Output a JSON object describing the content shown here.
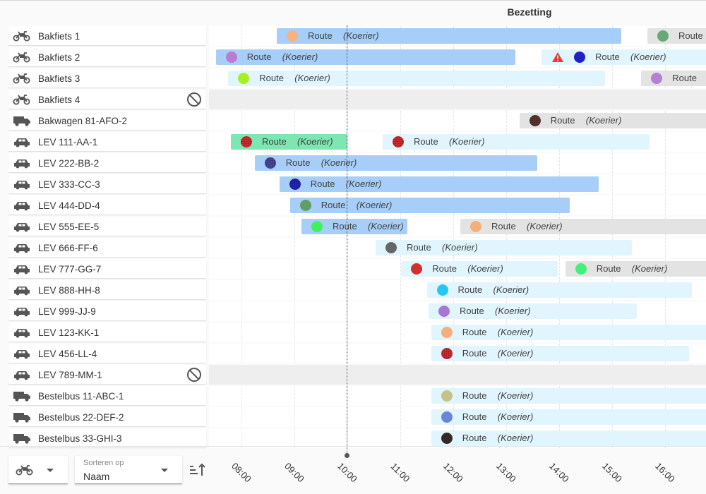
{
  "title": "Bezetting",
  "now_time": "10:00",
  "axis": {
    "start": "07:30",
    "end": "16:50",
    "ticks": [
      "08:00",
      "09:00",
      "10:00",
      "11:00",
      "12:00",
      "13:00",
      "14:00",
      "15:00",
      "16:00"
    ]
  },
  "controls": {
    "vehicle_filter_icon": "bike-icon",
    "sort_label": "Sorteren op",
    "sort_value": "Naam",
    "sort_direction_icon": "sort-ascending-icon"
  },
  "colors": {
    "bar_light": "#e1f5fe",
    "bar_blue": "#a6cef8",
    "bar_grey": "#e3e3e3",
    "bar_green": "#7ee6b0",
    "warning": "#e53935"
  },
  "vehicles": [
    {
      "name": "Bakfiets 1",
      "type": "bike",
      "routes": [
        {
          "start": "08:40",
          "end": "15:10",
          "style": "blue",
          "dot": "#f6b27f",
          "label": "Route",
          "courier": "(Koerier)"
        },
        {
          "start": "15:40",
          "end": "16:50",
          "style": "grey",
          "dot": "#66a877",
          "label": "Route",
          "courier": "(Koerier)"
        }
      ]
    },
    {
      "name": "Bakfiets 2",
      "type": "bike",
      "routes": [
        {
          "start": "07:31",
          "end": "13:10",
          "style": "blue",
          "dot": "#ba7bd1",
          "label": "Route",
          "courier": "(Koerier)"
        },
        {
          "start": "13:40",
          "end": "16:50",
          "style": "light",
          "dot": "#2121c9",
          "label": "Route",
          "courier": "(Koerier)",
          "warning": true
        }
      ]
    },
    {
      "name": "Bakfiets 3",
      "type": "bike",
      "routes": [
        {
          "start": "07:45",
          "end": "14:52",
          "style": "light",
          "dot": "#a6f01e",
          "label": "Route",
          "courier": "(Koerier)"
        },
        {
          "start": "15:33",
          "end": "16:50",
          "style": "grey",
          "dot": "#b47fd4",
          "label": "Route",
          "courier": "(Koerier)"
        }
      ]
    },
    {
      "name": "Bakfiets 4",
      "type": "bike",
      "disabled": true,
      "routes": []
    },
    {
      "name": "Bakwagen 81-AFO-2",
      "type": "truck",
      "routes": [
        {
          "start": "13:15",
          "end": "16:50",
          "style": "grey",
          "dot": "#5a3a2e",
          "pattern": true,
          "label": "Route",
          "courier": "(Koerier)"
        }
      ]
    },
    {
      "name": "LEV 111-AA-1",
      "type": "car",
      "routes": [
        {
          "start": "07:48",
          "end": "10:00",
          "style": "green",
          "dot": "#d32f2f",
          "pattern": true,
          "label": "Route",
          "courier": "(Koerier)"
        },
        {
          "start": "10:40",
          "end": "15:42",
          "style": "light",
          "dot": "#d32f2f",
          "pattern": true,
          "label": "Route",
          "courier": "(Koerier)"
        }
      ]
    },
    {
      "name": "LEV 222-BB-2",
      "type": "car",
      "routes": [
        {
          "start": "08:15",
          "end": "13:35",
          "style": "blue",
          "dot": "#4a4aa0",
          "pattern": true,
          "label": "Route",
          "courier": "(Koerier)"
        }
      ]
    },
    {
      "name": "LEV 333-CC-3",
      "type": "car",
      "routes": [
        {
          "start": "08:43",
          "end": "14:45",
          "style": "blue",
          "dot": "#2525bd",
          "pattern": true,
          "label": "Route",
          "courier": "(Koerier)"
        }
      ]
    },
    {
      "name": "LEV 444-DD-4",
      "type": "car",
      "routes": [
        {
          "start": "08:55",
          "end": "14:12",
          "style": "blue",
          "dot": "#5f9f67",
          "label": "Route",
          "courier": "(Koerier)"
        }
      ]
    },
    {
      "name": "LEV 555-EE-5",
      "type": "car",
      "routes": [
        {
          "start": "09:08",
          "end": "11:08",
          "style": "blue",
          "dot": "#3ff25a",
          "label": "Route",
          "courier": "(Koerier)"
        },
        {
          "start": "12:08",
          "end": "16:50",
          "style": "grey",
          "dot": "#f4b07a",
          "label": "Route",
          "courier": "(Koerier)"
        }
      ]
    },
    {
      "name": "LEV 666-FF-6",
      "type": "car",
      "routes": [
        {
          "start": "10:32",
          "end": "15:22",
          "style": "light",
          "dot": "#666666",
          "label": "Route",
          "courier": "(Koerier)"
        }
      ]
    },
    {
      "name": "LEV 777-GG-7",
      "type": "car",
      "routes": [
        {
          "start": "11:01",
          "end": "13:58",
          "style": "light",
          "dot": "#d32f2f",
          "label": "Route",
          "courier": "(Koerier)"
        },
        {
          "start": "14:07",
          "end": "16:50",
          "style": "grey",
          "dot": "#43f07a",
          "label": "Route",
          "courier": "(Koerier)"
        }
      ]
    },
    {
      "name": "LEV 888-HH-8",
      "type": "car",
      "routes": [
        {
          "start": "11:30",
          "end": "16:30",
          "style": "light",
          "dot": "#24c8f5",
          "label": "Route",
          "courier": "(Koerier)"
        }
      ]
    },
    {
      "name": "LEV 999-JJ-9",
      "type": "car",
      "routes": [
        {
          "start": "11:32",
          "end": "15:28",
          "style": "light",
          "dot": "#a777d6",
          "label": "Route",
          "courier": "(Koerier)"
        }
      ]
    },
    {
      "name": "LEV 123-KK-1",
      "type": "car",
      "routes": [
        {
          "start": "11:35",
          "end": "16:50",
          "style": "light",
          "dot": "#f4b07a",
          "label": "Route",
          "courier": "(Koerier)"
        }
      ]
    },
    {
      "name": "LEV 456-LL-4",
      "type": "car",
      "routes": [
        {
          "start": "11:35",
          "end": "16:27",
          "style": "light",
          "dot": "#d32f2f",
          "pattern": true,
          "label": "Route",
          "courier": "(Koerier)"
        }
      ]
    },
    {
      "name": "LEV 789-MM-1",
      "type": "car",
      "disabled": true,
      "routes": []
    },
    {
      "name": "Bestelbus 11-ABC-1",
      "type": "truck",
      "routes": [
        {
          "start": "11:35",
          "end": "16:50",
          "style": "light",
          "dot": "#c7c286",
          "label": "Route",
          "courier": "(Koerier)"
        }
      ]
    },
    {
      "name": "Bestelbus 22-DEF-2",
      "type": "truck",
      "routes": [
        {
          "start": "11:35",
          "end": "16:50",
          "style": "light",
          "dot": "#6a86d8",
          "label": "Route",
          "courier": "(Koerier)"
        }
      ]
    },
    {
      "name": "Bestelbus 33-GHI-3",
      "type": "truck",
      "routes": [
        {
          "start": "11:35",
          "end": "16:50",
          "style": "light",
          "dot": "#3c2f2a",
          "pattern": true,
          "label": "Route",
          "courier": "(Koerier)"
        }
      ]
    }
  ]
}
